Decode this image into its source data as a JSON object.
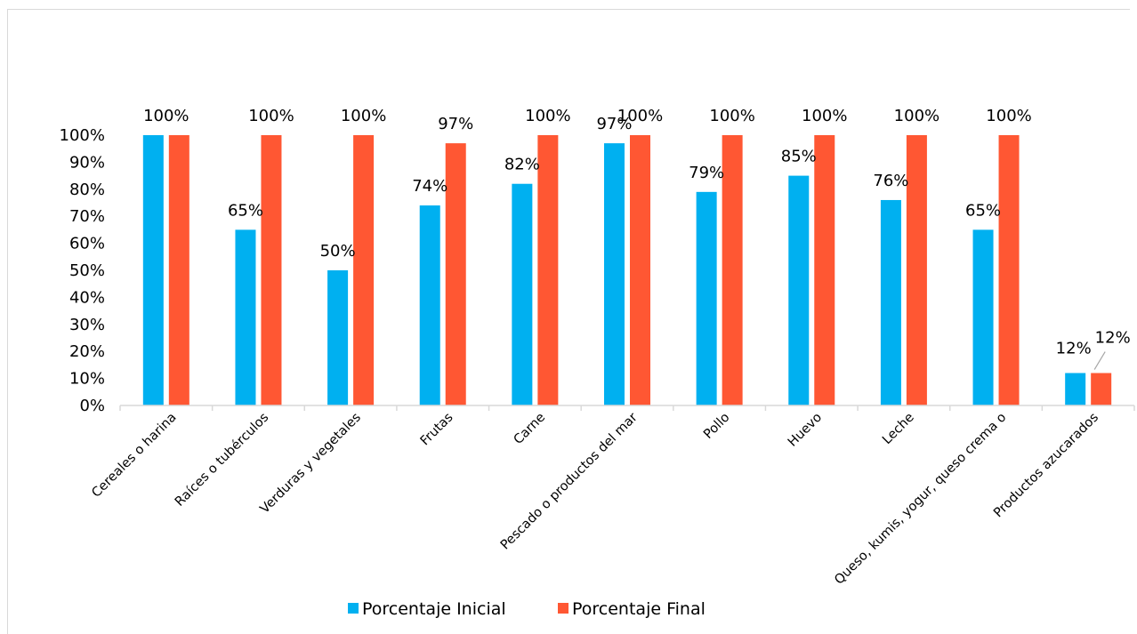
{
  "chart_data": {
    "type": "bar",
    "title": "",
    "xlabel": "",
    "ylabel": "",
    "ylim": [
      0,
      100
    ],
    "yticks": [
      "0%",
      "10%",
      "20%",
      "30%",
      "40%",
      "50%",
      "60%",
      "70%",
      "80%",
      "90%",
      "100%"
    ],
    "categories": [
      "Cereales o harina",
      "Raíces o tubérculos",
      "Verduras y vegetales",
      "Frutas",
      "Carne",
      "Pescado o productos del mar",
      "Pollo",
      "Huevo",
      "Leche",
      "Queso, kumis, yogur, queso crema o",
      "Productos azucarados"
    ],
    "series": [
      {
        "name": "Porcentaje Inicial",
        "color": "#00b0f0",
        "values": [
          100,
          65,
          50,
          74,
          82,
          97,
          79,
          85,
          76,
          65,
          12
        ],
        "labels": [
          "100%",
          "65%",
          "50%",
          "74%",
          "82%",
          "97%",
          "79%",
          "85%",
          "76%",
          "65%",
          "12%"
        ]
      },
      {
        "name": "Porcentaje Final",
        "color": "#ff5733",
        "values": [
          100,
          100,
          100,
          97,
          100,
          100,
          100,
          100,
          100,
          100,
          12
        ],
        "labels": [
          "100%",
          "100%",
          "100%",
          "97%",
          "100%",
          "100%",
          "100%",
          "100%",
          "100%",
          "100%",
          "12%"
        ]
      }
    ],
    "legend_position": "bottom",
    "grid": false
  }
}
